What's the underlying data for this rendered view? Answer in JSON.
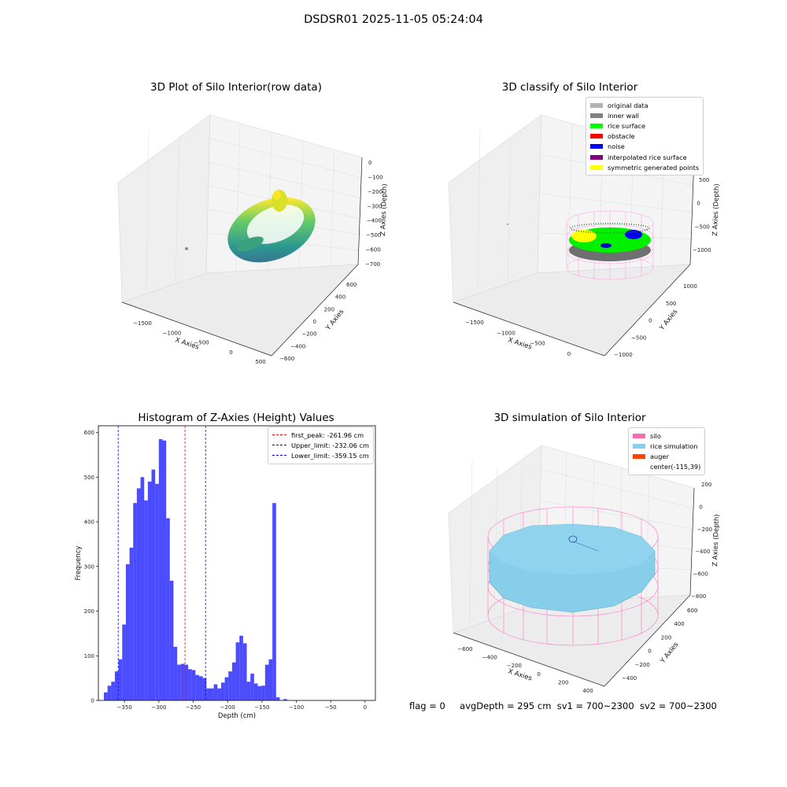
{
  "suptitle": "DSDSR01 2025-11-05 05:24:04",
  "status": {
    "flag": "flag = 0",
    "avgDepth": "avgDepth = 295 cm",
    "sv1": "sv1 = 700~2300",
    "sv2": "sv2 = 700~2300"
  },
  "panels": {
    "raw": {
      "title": "3D Plot of Silo Interior(row data)",
      "xlabel": "X Axies",
      "ylabel": "Y Axies",
      "zlabel": "Z Axies (Depth)",
      "xticks": [
        "−1500",
        "−1000",
        "−500",
        "0",
        "500"
      ],
      "yticks": [
        "−600",
        "−400",
        "−200",
        "0",
        "200",
        "400",
        "600"
      ],
      "zticks": [
        "0",
        "−100",
        "−200",
        "−300",
        "−400",
        "−500",
        "−600",
        "−700"
      ],
      "colormap": [
        "#440154",
        "#21918c",
        "#5ec962",
        "#fde725"
      ]
    },
    "classify": {
      "title": "3D classify of Silo Interior",
      "xlabel": "X Axies",
      "ylabel": "Y Axies",
      "zlabel": "Z Axies (Depth)",
      "xticks": [
        "−1500",
        "−1000",
        "−500",
        "0"
      ],
      "yticks": [
        "−1000",
        "−500",
        "0",
        "500",
        "1000"
      ],
      "zticks": [
        "500",
        "0",
        "−500",
        "−1000"
      ],
      "legend": [
        {
          "label": "original data",
          "color": "#b2b2b2"
        },
        {
          "label": "inner wall",
          "color": "#808080"
        },
        {
          "label": "rice surface",
          "color": "#00ff00"
        },
        {
          "label": "obstacle",
          "color": "#ff0000"
        },
        {
          "label": "noise",
          "color": "#0000ff"
        },
        {
          "label": "interpolated rice surface",
          "color": "#800080"
        },
        {
          "label": "symmetric generated points",
          "color": "#ffff00"
        }
      ]
    },
    "simulation": {
      "title": "3D simulation of Silo Interior",
      "xlabel": "X Axies",
      "ylabel": "Y Axies",
      "zlabel": "Z Axies (Depth)",
      "xticks": [
        "−600",
        "−400",
        "−200",
        "0",
        "200",
        "400"
      ],
      "yticks": [
        "−400",
        "−200",
        "0",
        "200",
        "400",
        "600"
      ],
      "zticks": [
        "200",
        "0",
        "−200",
        "−400",
        "−600",
        "−800"
      ],
      "legend": [
        {
          "label": "silo",
          "color": "#ff69b4"
        },
        {
          "label": "rice simulation",
          "color": "#87ceeb"
        },
        {
          "label": "auger",
          "color": "#ff4500"
        },
        {
          "label": "center(-115,39)",
          "color": ""
        }
      ]
    }
  },
  "chart_data": [
    {
      "type": "bar",
      "title": "Histogram of Z-Axies (Height) Values",
      "xlabel": "Depth (cm)",
      "ylabel": "Frequency",
      "xlim": [
        -388,
        15
      ],
      "ylim": [
        0,
        615
      ],
      "xticks": [
        -350,
        -300,
        -250,
        -200,
        -150,
        -100,
        -50,
        0
      ],
      "yticks": [
        0,
        100,
        200,
        300,
        400,
        500,
        600
      ],
      "bar_color": "#0000ff",
      "bins": {
        "start": -380,
        "width": 5.33,
        "values": [
          18,
          33,
          42,
          65,
          92,
          170,
          305,
          342,
          442,
          475,
          500,
          448,
          490,
          517,
          485,
          585,
          582,
          408,
          268,
          120,
          80,
          82,
          80,
          70,
          68,
          57,
          54,
          50,
          27,
          27,
          36,
          27,
          40,
          52,
          65,
          85,
          130,
          145,
          128,
          42,
          60,
          38,
          32,
          33,
          80,
          92,
          442,
          7,
          0,
          3
        ]
      },
      "vlines": [
        {
          "label": "first_peak: -261.96 cm",
          "x": -261.96,
          "color": "#ff0000"
        },
        {
          "label": "Upper_limit: -232.06 cm",
          "x": -232.06,
          "color": "#0000ff"
        },
        {
          "label": "Lower_limit: -359.15 cm",
          "x": -359.15,
          "color": "#0000ff"
        }
      ]
    }
  ]
}
